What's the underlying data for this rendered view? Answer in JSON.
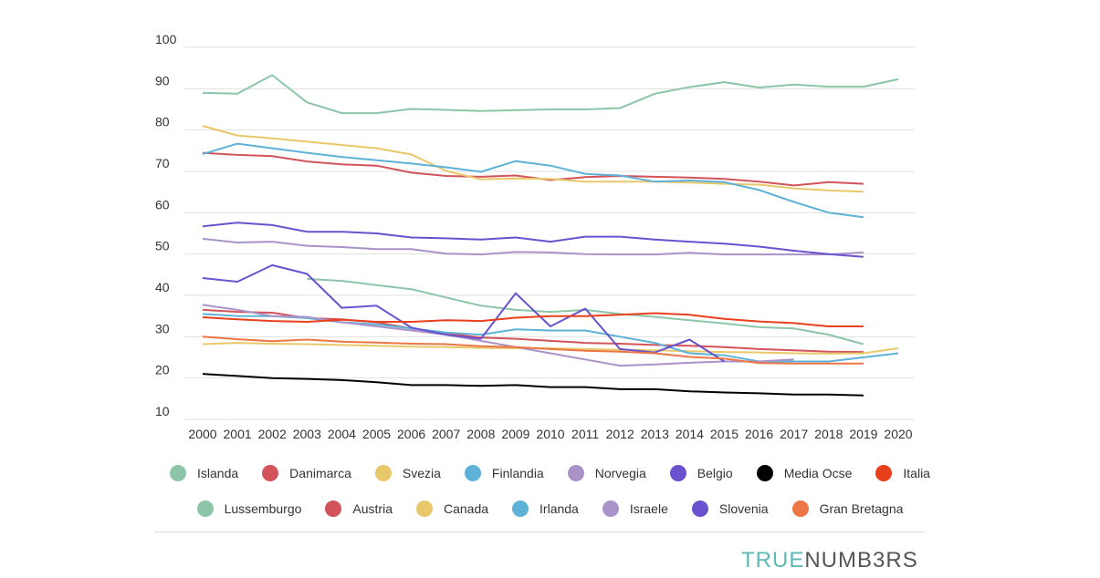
{
  "chart_data": {
    "type": "line",
    "title": "",
    "xlabel": "",
    "ylabel": "",
    "x": [
      2000,
      2001,
      2002,
      2003,
      2004,
      2005,
      2006,
      2007,
      2008,
      2009,
      2010,
      2011,
      2012,
      2013,
      2014,
      2015,
      2016,
      2017,
      2018,
      2019,
      2020
    ],
    "yticks": [
      10,
      20,
      30,
      40,
      50,
      60,
      70,
      80,
      90,
      100
    ],
    "ylim": [
      10,
      100
    ],
    "grid": true,
    "series": [
      {
        "name": "Islanda",
        "color": "#8dc5a8",
        "values": [
          89.0,
          88.8,
          93.3,
          86.7,
          84.1,
          84.1,
          85.1,
          84.9,
          84.6,
          84.8,
          85.0,
          85.0,
          85.3,
          88.8,
          90.4,
          91.6,
          90.3,
          91.0,
          90.5,
          90.5,
          92.3
        ]
      },
      {
        "name": "Lussemburgo",
        "color": "#8dc5a8",
        "values": [
          null,
          null,
          null,
          44.0,
          43.5,
          42.5,
          41.5,
          39.5,
          37.5,
          36.5,
          36.0,
          36.5,
          35.5,
          34.8,
          34.0,
          33.2,
          32.3,
          32.0,
          30.5,
          28.2,
          null
        ]
      },
      {
        "name": "Danimarca",
        "color": "#d2545a",
        "values": [
          74.5,
          74.0,
          73.7,
          72.4,
          71.7,
          71.4,
          69.7,
          68.9,
          68.7,
          69.0,
          67.9,
          68.6,
          68.9,
          68.7,
          68.5,
          68.2,
          67.5,
          66.6,
          67.4,
          67.0,
          null
        ]
      },
      {
        "name": "Austria",
        "color": "#d2545a",
        "values": [
          36.5,
          36.0,
          35.8,
          34.5,
          34.2,
          33.5,
          32.0,
          30.8,
          29.8,
          29.5,
          29.0,
          28.5,
          28.3,
          28.0,
          27.8,
          27.5,
          27.0,
          26.7,
          26.4,
          26.3,
          null
        ]
      },
      {
        "name": "Svezia",
        "color": "#e9c86a",
        "values": [
          81.0,
          78.7,
          78.0,
          77.2,
          76.4,
          75.6,
          74.1,
          70.1,
          68.1,
          68.3,
          68.2,
          67.5,
          67.5,
          67.5,
          67.3,
          67.0,
          66.8,
          65.9,
          65.4,
          65.1,
          null
        ]
      },
      {
        "name": "Canada",
        "color": "#e9c86a",
        "values": [
          28.2,
          28.5,
          28.3,
          28.2,
          28.0,
          27.8,
          27.6,
          27.5,
          27.3,
          27.2,
          27.2,
          27.0,
          26.8,
          26.7,
          26.5,
          26.3,
          26.2,
          26.0,
          25.9,
          26.0,
          27.2
        ]
      },
      {
        "name": "Finlandia",
        "color": "#5eb2d8",
        "values": [
          74.2,
          76.7,
          75.6,
          74.5,
          73.5,
          72.7,
          71.9,
          71.0,
          69.9,
          72.5,
          71.4,
          69.4,
          69.0,
          67.5,
          67.8,
          67.4,
          65.5,
          62.6,
          60.0,
          58.9,
          null
        ]
      },
      {
        "name": "Irlanda",
        "color": "#5eb2d8",
        "values": [
          35.5,
          35.0,
          35.0,
          34.5,
          33.5,
          33.0,
          32.0,
          31.0,
          30.5,
          31.8,
          31.5,
          31.5,
          30.0,
          28.5,
          26.0,
          25.5,
          24.0,
          24.0,
          24.0,
          25.0,
          26.0
        ]
      },
      {
        "name": "Norvegia",
        "color": "#a993c8",
        "values": [
          53.7,
          52.8,
          53.0,
          52.0,
          51.7,
          51.2,
          51.2,
          50.1,
          49.9,
          50.5,
          50.4,
          50.0,
          49.9,
          49.9,
          50.3,
          49.9,
          49.9,
          49.9,
          49.9,
          50.4,
          null
        ]
      },
      {
        "name": "Israele",
        "color": "#a993c8",
        "values": [
          37.7,
          36.5,
          35.0,
          34.8,
          33.5,
          32.5,
          31.5,
          30.5,
          29.0,
          27.5,
          26.0,
          24.5,
          23.0,
          23.3,
          23.7,
          24.0,
          24.0,
          24.5,
          null,
          null,
          null
        ]
      },
      {
        "name": "Belgio",
        "color": "#6a52cf",
        "values": [
          56.7,
          57.6,
          57.0,
          55.4,
          55.4,
          55.0,
          54.0,
          53.8,
          53.5,
          54.0,
          53.0,
          54.2,
          54.2,
          53.5,
          53.0,
          52.5,
          51.8,
          50.8,
          50.0,
          49.3,
          null
        ]
      },
      {
        "name": "Slovenia",
        "color": "#6a52cf",
        "values": [
          44.2,
          43.3,
          47.3,
          45.2,
          37.0,
          37.5,
          32.2,
          30.5,
          29.5,
          40.5,
          32.5,
          36.8,
          27.0,
          26.2,
          29.3,
          24.0,
          null,
          null,
          null,
          null,
          null
        ]
      },
      {
        "name": "Media Ocse",
        "color": "#000000",
        "values": [
          21.0,
          20.5,
          20.0,
          19.8,
          19.5,
          19.0,
          18.3,
          18.3,
          18.1,
          18.3,
          17.8,
          17.8,
          17.3,
          17.3,
          16.8,
          16.5,
          16.3,
          16.0,
          16.0,
          15.8,
          null
        ]
      },
      {
        "name": "Italia",
        "color": "#e8401c",
        "values": [
          34.7,
          34.2,
          33.8,
          33.6,
          34.1,
          33.6,
          33.6,
          34.0,
          33.8,
          34.6,
          35.0,
          35.0,
          35.3,
          35.7,
          35.3,
          34.3,
          33.7,
          33.3,
          32.5,
          32.5,
          null
        ]
      },
      {
        "name": "Gran Bretagna",
        "color": "#ec7645",
        "values": [
          30.0,
          29.4,
          28.9,
          29.3,
          28.8,
          28.6,
          28.3,
          28.2,
          27.7,
          27.5,
          27.0,
          26.6,
          26.4,
          26.0,
          25.1,
          24.7,
          23.6,
          23.5,
          23.5,
          23.5,
          null
        ]
      }
    ],
    "legend_rows": [
      [
        "Islanda",
        "Danimarca",
        "Svezia",
        "Finlandia",
        "Norvegia",
        "Belgio",
        "Media Ocse",
        "Italia"
      ],
      [
        "Lussemburgo",
        "Austria",
        "Canada",
        "Irlanda",
        "Israele",
        "Slovenia",
        "Gran Bretagna"
      ]
    ],
    "legend_placement": "bottom"
  },
  "brand": {
    "part1": "TRUE",
    "part2": "NUMB3RS"
  }
}
